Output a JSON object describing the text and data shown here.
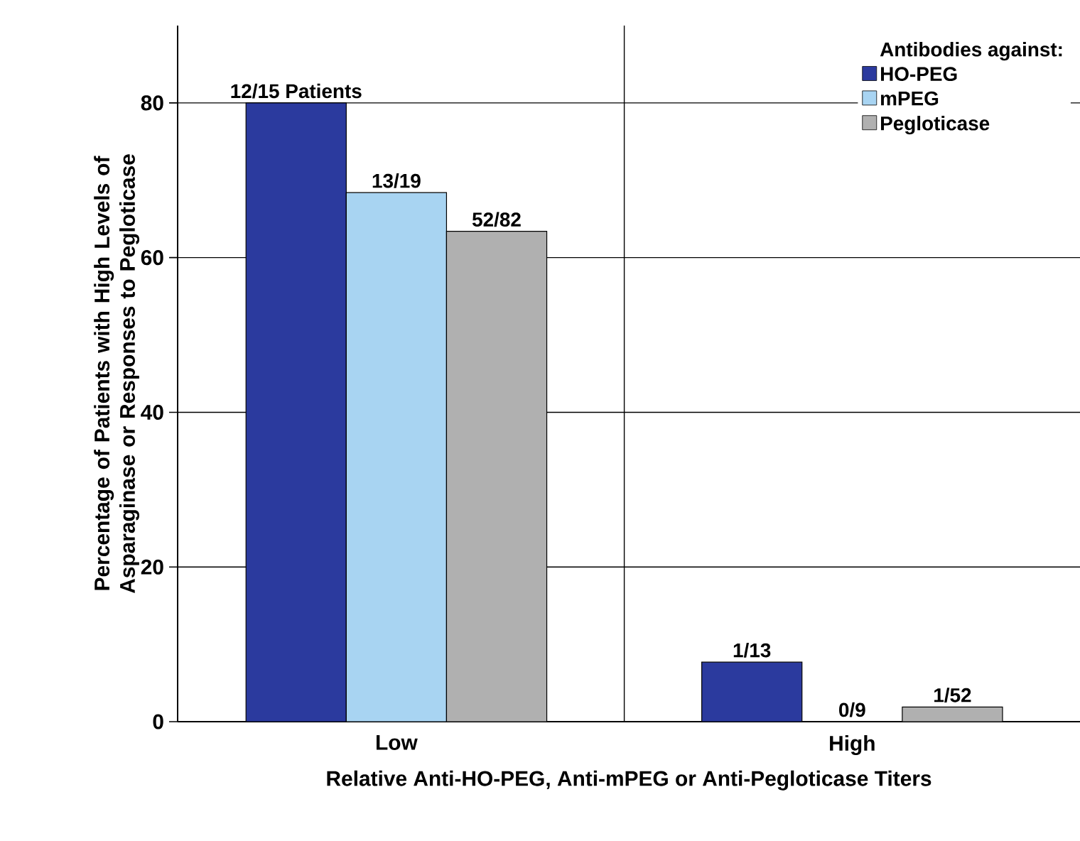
{
  "chart_data": {
    "type": "bar",
    "xlabel": "Relative Anti-HO-PEG, Anti-mPEG or Anti-Pegloticase Titers",
    "ylabel": "Percentage of Patients with High Levels of Asparaginase or Responses to Pegloticase",
    "legend_title": "Antibodies against:",
    "categories": [
      "Low",
      "High"
    ],
    "series": [
      {
        "name": "HO-PEG",
        "color": "#2b3a9e",
        "values": [
          80,
          7.7
        ],
        "value_labels": [
          "12/15 Patients",
          "1/13"
        ]
      },
      {
        "name": "mPEG",
        "color": "#a8d4f2",
        "values": [
          68.4,
          0
        ],
        "value_labels": [
          "13/19",
          "0/9"
        ]
      },
      {
        "name": "Pegloticase",
        "color": "#b0b0b0",
        "values": [
          63.4,
          1.9
        ],
        "value_labels": [
          "52/82",
          "1/52"
        ]
      }
    ],
    "ylim": [
      0,
      90
    ],
    "yticks": [
      0,
      20,
      40,
      60,
      80
    ],
    "grid": "y",
    "legend": "top right"
  }
}
